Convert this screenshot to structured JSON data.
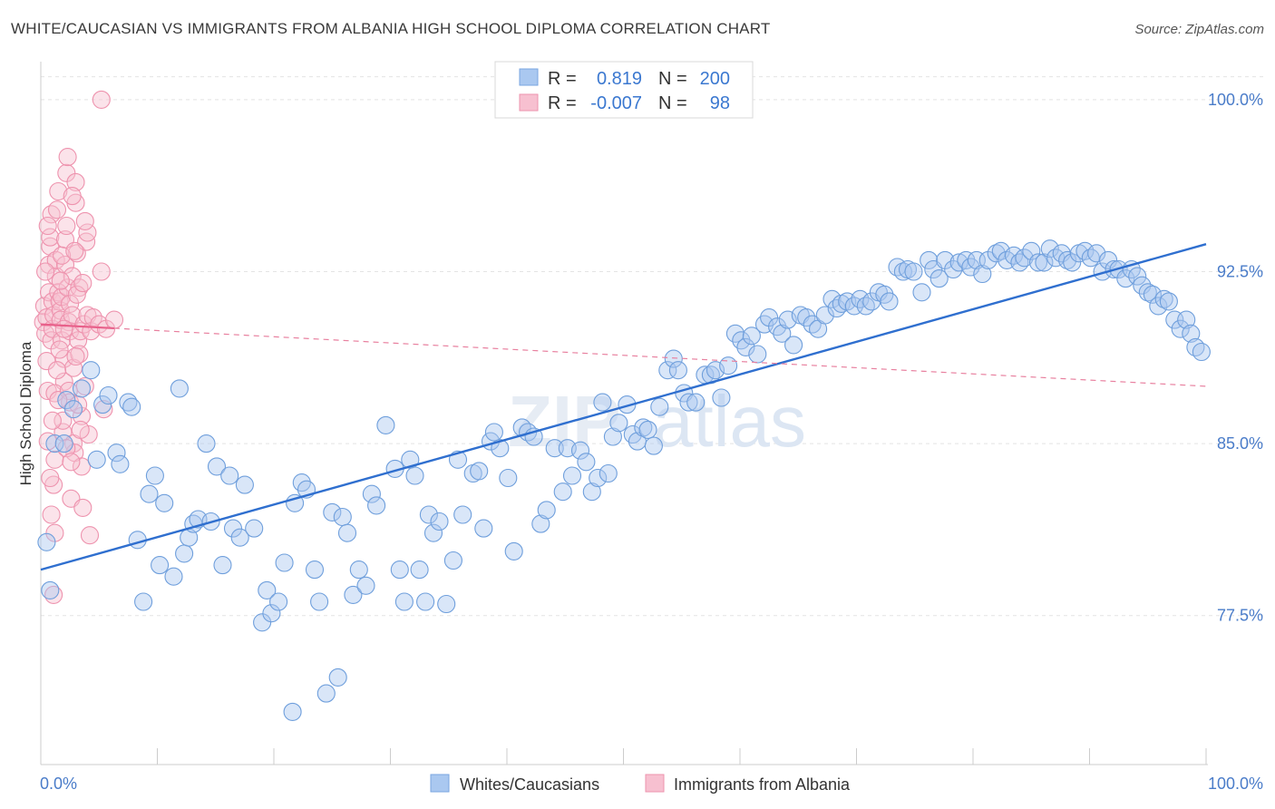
{
  "title": "WHITE/CAUCASIAN VS IMMIGRANTS FROM ALBANIA HIGH SCHOOL DIPLOMA CORRELATION CHART",
  "source": "Source: ZipAtlas.com",
  "watermark": {
    "zip": "ZIP",
    "atlas": "atlas"
  },
  "legend": {
    "r_label": "R =",
    "n_label": "N =",
    "rows": [
      {
        "r": "0.819",
        "n": "200",
        "color": "#aac8f0",
        "stroke": "#7aa6e0"
      },
      {
        "r": "-0.007",
        "n": "98",
        "color": "#f7c0d0",
        "stroke": "#ee93ae"
      }
    ]
  },
  "bottom_legend": [
    {
      "label": "Whites/Caucasians",
      "color": "#aac8f0",
      "stroke": "#7aa6e0"
    },
    {
      "label": "Immigrants from Albania",
      "color": "#f7c0d0",
      "stroke": "#ee93ae"
    }
  ],
  "chart_data": {
    "type": "scatter",
    "ylabel": "High School Diploma",
    "xlim": [
      0,
      100
    ],
    "ylim": [
      71,
      101.5
    ],
    "x_tick_labels": [
      "0.0%",
      "100.0%"
    ],
    "y_ticks": [
      {
        "value": 77.5,
        "label": "77.5%"
      },
      {
        "value": 85.0,
        "label": "85.0%"
      },
      {
        "value": 92.5,
        "label": "92.5%"
      },
      {
        "value": 100.0,
        "label": "100.0%"
      }
    ],
    "grid": true,
    "series": [
      {
        "name": "Whites/Caucasians",
        "color": "#aac8f0",
        "stroke": "#6f9fdc",
        "trend": {
          "x": [
            0,
            100
          ],
          "y": [
            79.5,
            93.7
          ]
        },
        "points": [
          [
            0.5,
            80.7
          ],
          [
            0.8,
            78.6
          ],
          [
            1.2,
            85.0
          ],
          [
            2.0,
            85.0
          ],
          [
            2.2,
            86.9
          ],
          [
            2.8,
            86.5
          ],
          [
            3.5,
            87.4
          ],
          [
            4.3,
            88.2
          ],
          [
            4.8,
            84.3
          ],
          [
            5.3,
            86.7
          ],
          [
            5.8,
            87.1
          ],
          [
            6.5,
            84.6
          ],
          [
            6.8,
            84.1
          ],
          [
            7.5,
            86.8
          ],
          [
            7.8,
            86.6
          ],
          [
            8.3,
            80.8
          ],
          [
            8.8,
            78.1
          ],
          [
            9.3,
            82.8
          ],
          [
            9.8,
            83.6
          ],
          [
            10.2,
            79.7
          ],
          [
            10.6,
            82.4
          ],
          [
            11.4,
            79.2
          ],
          [
            11.9,
            87.4
          ],
          [
            12.3,
            80.2
          ],
          [
            12.7,
            80.9
          ],
          [
            13.1,
            81.5
          ],
          [
            13.5,
            81.7
          ],
          [
            14.2,
            85.0
          ],
          [
            14.6,
            81.6
          ],
          [
            15.1,
            84.0
          ],
          [
            15.6,
            79.7
          ],
          [
            16.2,
            83.6
          ],
          [
            16.5,
            81.3
          ],
          [
            17.1,
            80.9
          ],
          [
            17.5,
            83.2
          ],
          [
            18.3,
            81.3
          ],
          [
            19.0,
            77.2
          ],
          [
            19.4,
            78.6
          ],
          [
            19.8,
            77.6
          ],
          [
            20.4,
            78.1
          ],
          [
            20.9,
            79.8
          ],
          [
            21.6,
            73.3
          ],
          [
            21.8,
            82.4
          ],
          [
            22.4,
            83.3
          ],
          [
            22.8,
            83.0
          ],
          [
            23.5,
            79.5
          ],
          [
            23.9,
            78.1
          ],
          [
            24.5,
            74.1
          ],
          [
            25.0,
            82.0
          ],
          [
            25.5,
            74.8
          ],
          [
            25.9,
            81.8
          ],
          [
            26.3,
            81.1
          ],
          [
            26.8,
            78.4
          ],
          [
            27.3,
            79.5
          ],
          [
            27.9,
            78.8
          ],
          [
            28.4,
            82.8
          ],
          [
            28.8,
            82.3
          ],
          [
            29.6,
            85.8
          ],
          [
            30.4,
            83.9
          ],
          [
            30.8,
            79.5
          ],
          [
            31.2,
            78.1
          ],
          [
            31.7,
            84.3
          ],
          [
            32.1,
            83.6
          ],
          [
            32.5,
            79.5
          ],
          [
            33.0,
            78.1
          ],
          [
            33.3,
            81.9
          ],
          [
            33.7,
            81.1
          ],
          [
            34.2,
            81.6
          ],
          [
            34.8,
            78.0
          ],
          [
            35.4,
            79.9
          ],
          [
            35.8,
            84.3
          ],
          [
            36.2,
            81.9
          ],
          [
            37.1,
            83.7
          ],
          [
            37.6,
            83.8
          ],
          [
            38.0,
            81.3
          ],
          [
            38.6,
            85.1
          ],
          [
            38.9,
            85.5
          ],
          [
            39.4,
            84.8
          ],
          [
            40.1,
            83.5
          ],
          [
            40.6,
            80.3
          ],
          [
            41.3,
            85.7
          ],
          [
            41.8,
            85.5
          ],
          [
            42.3,
            85.3
          ],
          [
            42.9,
            81.5
          ],
          [
            43.4,
            82.1
          ],
          [
            44.1,
            84.8
          ],
          [
            44.8,
            82.9
          ],
          [
            45.2,
            84.8
          ],
          [
            45.6,
            83.6
          ],
          [
            46.3,
            84.7
          ],
          [
            46.8,
            84.2
          ],
          [
            47.3,
            82.9
          ],
          [
            47.8,
            83.5
          ],
          [
            48.2,
            86.8
          ],
          [
            48.7,
            83.7
          ],
          [
            49.1,
            85.3
          ],
          [
            49.6,
            85.9
          ],
          [
            50.3,
            86.7
          ],
          [
            50.8,
            85.4
          ],
          [
            51.2,
            85.1
          ],
          [
            51.7,
            85.7
          ],
          [
            52.1,
            85.6
          ],
          [
            52.6,
            84.9
          ],
          [
            53.1,
            86.6
          ],
          [
            53.8,
            88.2
          ],
          [
            54.3,
            88.7
          ],
          [
            54.7,
            88.2
          ],
          [
            55.2,
            87.2
          ],
          [
            55.6,
            86.8
          ],
          [
            56.2,
            86.8
          ],
          [
            57.0,
            88.0
          ],
          [
            57.5,
            88.0
          ],
          [
            57.9,
            88.2
          ],
          [
            58.4,
            87.0
          ],
          [
            59.0,
            88.4
          ],
          [
            59.6,
            89.8
          ],
          [
            60.1,
            89.5
          ],
          [
            60.5,
            89.2
          ],
          [
            61.0,
            89.7
          ],
          [
            61.5,
            88.9
          ],
          [
            62.1,
            90.2
          ],
          [
            62.5,
            90.5
          ],
          [
            63.2,
            90.1
          ],
          [
            63.6,
            89.8
          ],
          [
            64.1,
            90.4
          ],
          [
            64.6,
            89.3
          ],
          [
            65.2,
            90.6
          ],
          [
            65.7,
            90.5
          ],
          [
            66.2,
            90.2
          ],
          [
            66.7,
            90.0
          ],
          [
            67.3,
            90.6
          ],
          [
            67.9,
            91.3
          ],
          [
            68.3,
            90.9
          ],
          [
            68.7,
            91.1
          ],
          [
            69.2,
            91.2
          ],
          [
            69.8,
            91.0
          ],
          [
            70.3,
            91.3
          ],
          [
            70.8,
            91.0
          ],
          [
            71.3,
            91.2
          ],
          [
            71.9,
            91.6
          ],
          [
            72.4,
            91.5
          ],
          [
            72.8,
            91.2
          ],
          [
            73.5,
            92.7
          ],
          [
            74.0,
            92.5
          ],
          [
            74.4,
            92.6
          ],
          [
            74.9,
            92.5
          ],
          [
            75.6,
            91.6
          ],
          [
            76.2,
            93.0
          ],
          [
            76.6,
            92.6
          ],
          [
            77.1,
            92.2
          ],
          [
            77.6,
            93.0
          ],
          [
            78.3,
            92.6
          ],
          [
            78.8,
            92.9
          ],
          [
            79.4,
            93.0
          ],
          [
            79.8,
            92.7
          ],
          [
            80.3,
            93.0
          ],
          [
            80.8,
            92.4
          ],
          [
            81.3,
            93.0
          ],
          [
            82.0,
            93.3
          ],
          [
            82.4,
            93.4
          ],
          [
            82.9,
            93.0
          ],
          [
            83.5,
            93.2
          ],
          [
            84.0,
            92.9
          ],
          [
            84.4,
            93.1
          ],
          [
            85.0,
            93.4
          ],
          [
            85.6,
            92.9
          ],
          [
            86.1,
            92.9
          ],
          [
            86.6,
            93.5
          ],
          [
            87.1,
            93.1
          ],
          [
            87.6,
            93.3
          ],
          [
            88.1,
            93.0
          ],
          [
            88.5,
            92.9
          ],
          [
            89.1,
            93.3
          ],
          [
            89.6,
            93.4
          ],
          [
            90.1,
            93.1
          ],
          [
            90.6,
            93.3
          ],
          [
            91.1,
            92.5
          ],
          [
            91.6,
            93.0
          ],
          [
            92.1,
            92.6
          ],
          [
            92.5,
            92.6
          ],
          [
            93.1,
            92.2
          ],
          [
            93.6,
            92.6
          ],
          [
            94.1,
            92.3
          ],
          [
            94.5,
            91.9
          ],
          [
            95.0,
            91.6
          ],
          [
            95.4,
            91.5
          ],
          [
            95.9,
            91.0
          ],
          [
            96.4,
            91.3
          ],
          [
            96.8,
            91.2
          ],
          [
            97.3,
            90.4
          ],
          [
            97.8,
            90.0
          ],
          [
            98.3,
            90.4
          ],
          [
            98.7,
            89.8
          ],
          [
            99.1,
            89.2
          ],
          [
            99.6,
            89.0
          ]
        ]
      },
      {
        "name": "Immigrants from Albania",
        "color": "#f7c0d0",
        "stroke": "#ee93ae",
        "trend": {
          "x": [
            0,
            100
          ],
          "y": [
            90.2,
            87.5
          ]
        },
        "points": [
          [
            0.2,
            90.3
          ],
          [
            0.3,
            91.0
          ],
          [
            0.4,
            89.8
          ],
          [
            0.5,
            90.5
          ],
          [
            0.5,
            88.6
          ],
          [
            0.6,
            87.3
          ],
          [
            0.6,
            85.1
          ],
          [
            0.7,
            91.6
          ],
          [
            0.7,
            92.8
          ],
          [
            0.8,
            93.6
          ],
          [
            0.8,
            94.0
          ],
          [
            0.9,
            95.0
          ],
          [
            0.9,
            89.5
          ],
          [
            1.0,
            90.0
          ],
          [
            1.0,
            91.2
          ],
          [
            1.1,
            90.6
          ],
          [
            1.1,
            83.2
          ],
          [
            1.2,
            84.3
          ],
          [
            1.2,
            81.1
          ],
          [
            1.3,
            92.3
          ],
          [
            1.3,
            93.0
          ],
          [
            1.4,
            95.2
          ],
          [
            1.5,
            96.0
          ],
          [
            1.5,
            91.6
          ],
          [
            1.6,
            91.2
          ],
          [
            1.7,
            90.8
          ],
          [
            1.7,
            90.4
          ],
          [
            1.8,
            91.4
          ],
          [
            1.8,
            89.5
          ],
          [
            1.9,
            85.5
          ],
          [
            1.9,
            86.0
          ],
          [
            2.0,
            88.7
          ],
          [
            2.0,
            87.7
          ],
          [
            2.1,
            92.8
          ],
          [
            2.1,
            93.9
          ],
          [
            2.2,
            94.5
          ],
          [
            2.2,
            96.8
          ],
          [
            2.3,
            97.5
          ],
          [
            2.3,
            91.8
          ],
          [
            2.4,
            90.3
          ],
          [
            2.5,
            89.9
          ],
          [
            2.5,
            91.1
          ],
          [
            2.6,
            82.6
          ],
          [
            2.7,
            92.3
          ],
          [
            2.7,
            90.6
          ],
          [
            2.8,
            88.3
          ],
          [
            2.8,
            85.0
          ],
          [
            2.9,
            84.6
          ],
          [
            3.0,
            96.4
          ],
          [
            3.0,
            95.5
          ],
          [
            3.1,
            93.3
          ],
          [
            3.2,
            89.5
          ],
          [
            3.3,
            88.9
          ],
          [
            3.3,
            91.8
          ],
          [
            3.4,
            89.9
          ],
          [
            3.5,
            86.2
          ],
          [
            3.5,
            84.0
          ],
          [
            3.6,
            82.2
          ],
          [
            3.7,
            90.2
          ],
          [
            3.8,
            87.5
          ],
          [
            3.9,
            93.8
          ],
          [
            4.0,
            94.2
          ],
          [
            4.1,
            85.4
          ],
          [
            4.2,
            81.0
          ],
          [
            0.6,
            94.5
          ],
          [
            0.8,
            83.5
          ],
          [
            1.0,
            86.0
          ],
          [
            1.1,
            78.4
          ],
          [
            1.2,
            87.2
          ],
          [
            1.4,
            88.2
          ],
          [
            1.6,
            89.1
          ],
          [
            1.7,
            92.1
          ],
          [
            1.8,
            93.2
          ],
          [
            2.0,
            90.0
          ],
          [
            2.2,
            84.8
          ],
          [
            2.4,
            87.3
          ],
          [
            2.5,
            86.8
          ],
          [
            2.7,
            95.8
          ],
          [
            2.9,
            93.4
          ],
          [
            3.1,
            91.5
          ],
          [
            3.2,
            86.7
          ],
          [
            3.4,
            85.6
          ],
          [
            3.6,
            92.0
          ],
          [
            3.8,
            94.7
          ],
          [
            4.0,
            90.6
          ],
          [
            4.3,
            89.9
          ],
          [
            4.5,
            90.5
          ],
          [
            5.0,
            90.2
          ],
          [
            5.2,
            92.5
          ],
          [
            5.4,
            86.5
          ],
          [
            5.6,
            90.0
          ],
          [
            6.3,
            90.4
          ],
          [
            0.4,
            92.5
          ],
          [
            0.9,
            81.9
          ],
          [
            1.5,
            86.9
          ],
          [
            2.6,
            84.2
          ],
          [
            3.0,
            88.8
          ],
          [
            5.2,
            100.0
          ]
        ]
      }
    ]
  }
}
